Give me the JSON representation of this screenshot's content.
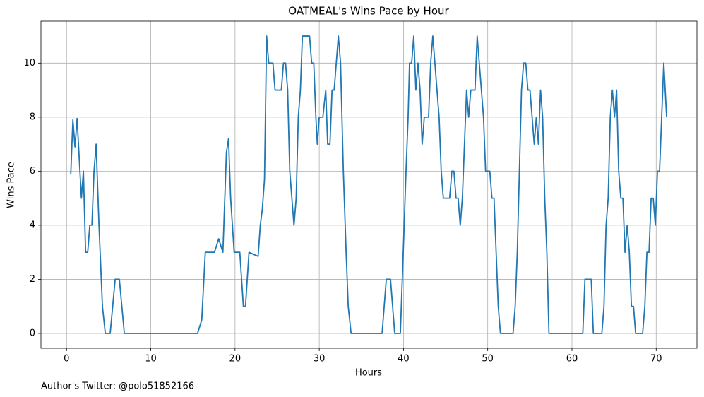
{
  "chart_data": {
    "type": "line",
    "title": "OATMEAL's Wins Pace by Hour",
    "xlabel": "Hours",
    "ylabel": "Wins Pace",
    "footer": "Author's Twitter: @polo51852166",
    "color": "#1f77b4",
    "grid": true,
    "xlim": [
      -3.04,
      74.84
    ],
    "ylim": [
      -0.55,
      11.55
    ],
    "xticks": [
      0,
      10,
      20,
      30,
      40,
      50,
      60,
      70
    ],
    "yticks": [
      0,
      2,
      4,
      6,
      8,
      10
    ],
    "x": [
      0.5,
      0.75,
      1.0,
      1.25,
      1.76,
      2.0,
      2.26,
      2.51,
      2.76,
      3.01,
      3.26,
      3.51,
      3.85,
      4.26,
      4.6,
      5.18,
      5.77,
      6.27,
      6.86,
      15.55,
      16.05,
      16.47,
      17.56,
      18.06,
      18.56,
      18.98,
      19.23,
      19.48,
      19.9,
      20.57,
      20.99,
      21.24,
      21.66,
      22.74,
      23.0,
      23.24,
      23.5,
      23.75,
      24.0,
      24.5,
      24.75,
      25.5,
      25.75,
      26.0,
      26.25,
      26.5,
      27.0,
      27.26,
      27.51,
      27.76,
      28.0,
      28.85,
      29.1,
      29.35,
      29.6,
      29.77,
      30.0,
      30.43,
      30.77,
      31.0,
      31.27,
      31.52,
      31.77,
      32.02,
      32.27,
      32.53,
      32.86,
      33.19,
      33.44,
      33.78,
      37.46,
      37.96,
      38.46,
      38.96,
      39.63,
      39.97,
      40.3,
      40.55,
      40.72,
      40.97,
      41.22,
      41.47,
      41.72,
      41.97,
      42.22,
      42.47,
      42.98,
      43.23,
      43.48,
      43.73,
      43.98,
      44.23,
      44.48,
      44.73,
      45.48,
      45.74,
      45.99,
      46.24,
      46.49,
      46.74,
      46.99,
      47.24,
      47.49,
      47.74,
      47.99,
      48.49,
      48.75,
      49.0,
      49.25,
      49.5,
      49.75,
      50.25,
      50.5,
      50.75,
      51.0,
      51.25,
      51.51,
      53.01,
      53.26,
      53.51,
      53.76,
      54.01,
      54.26,
      54.52,
      54.77,
      55.02,
      55.27,
      55.52,
      55.77,
      56.02,
      56.27,
      56.52,
      56.77,
      57.02,
      57.27,
      61.29,
      61.54,
      62.29,
      62.54,
      63.55,
      63.8,
      64.05,
      64.3,
      64.55,
      64.8,
      65.05,
      65.3,
      65.55,
      65.8,
      66.05,
      66.3,
      66.56,
      66.81,
      67.06,
      67.31,
      67.56,
      68.39,
      68.65,
      68.9,
      69.15,
      69.4,
      69.65,
      69.9,
      70.15,
      70.4,
      70.65,
      70.9,
      71.24
    ],
    "values": [
      5.9,
      7.9,
      6.9,
      7.95,
      5,
      6,
      3,
      3,
      4,
      4,
      6,
      7,
      4,
      1,
      0,
      0,
      2,
      2,
      0,
      0,
      0.5,
      3,
      3,
      3.5,
      3,
      6.7,
      7.2,
      5,
      3,
      3,
      1,
      1,
      3,
      2.85,
      4,
      4.6,
      5.7,
      11,
      10,
      10,
      9,
      9,
      10,
      10,
      9,
      6,
      4,
      5,
      8,
      9,
      11,
      11,
      10,
      10,
      8,
      7,
      8,
      8,
      9,
      7,
      7,
      9,
      9,
      10,
      11,
      10,
      6,
      3,
      1,
      0,
      0,
      2,
      2,
      0,
      0,
      3,
      6,
      8,
      10,
      10,
      11,
      9,
      10,
      9,
      7,
      8,
      8,
      10,
      11,
      10,
      9,
      8,
      6,
      5,
      5,
      6,
      6,
      5,
      5,
      4,
      5,
      7,
      9,
      8,
      9,
      9,
      11,
      10,
      9,
      8,
      6,
      6,
      5,
      5,
      3,
      1,
      0,
      0,
      1,
      3,
      6,
      9,
      10,
      10,
      9,
      9,
      8,
      7,
      8,
      7,
      9,
      8,
      5,
      3,
      0,
      0,
      2,
      2,
      0,
      0,
      1,
      4,
      5,
      8,
      9,
      8,
      9,
      6,
      5,
      5,
      3,
      4,
      3,
      1,
      1,
      0,
      0,
      1,
      3,
      3,
      5,
      5,
      4,
      6,
      6,
      8,
      10,
      8
    ]
  }
}
